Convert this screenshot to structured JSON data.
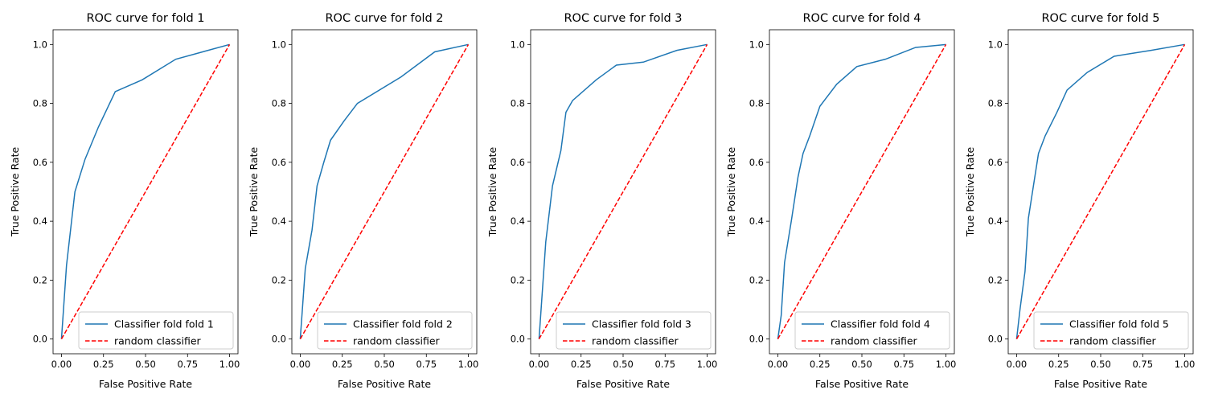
{
  "chart_data": [
    {
      "type": "line",
      "title": "ROC curve for fold 1",
      "xlabel": "False Positive Rate",
      "ylabel": "True Positive Rate",
      "xlim": [
        -0.05,
        1.05
      ],
      "ylim": [
        -0.05,
        1.05
      ],
      "xticks": [
        "0.00",
        "0.25",
        "0.50",
        "0.75",
        "1.00"
      ],
      "yticks": [
        "0.0",
        "0.2",
        "0.4",
        "0.6",
        "0.8",
        "1.0"
      ],
      "grid": false,
      "legend_position": "lower-right",
      "series": [
        {
          "name": "Classifier fold fold 1",
          "color": "#1f77b4",
          "style": "solid",
          "x": [
            0,
            0.03,
            0.08,
            0.14,
            0.22,
            0.32,
            0.48,
            0.68,
            1.0
          ],
          "y": [
            0,
            0.25,
            0.5,
            0.61,
            0.72,
            0.84,
            0.88,
            0.95,
            1.0
          ]
        },
        {
          "name": "random classifier",
          "color": "#ff0000",
          "style": "dashed",
          "x": [
            0,
            1
          ],
          "y": [
            0,
            1
          ]
        }
      ]
    },
    {
      "type": "line",
      "title": "ROC curve for fold 2",
      "xlabel": "False Positive Rate",
      "ylabel": "True Positive Rate",
      "xlim": [
        -0.05,
        1.05
      ],
      "ylim": [
        -0.05,
        1.05
      ],
      "xticks": [
        "0.00",
        "0.25",
        "0.50",
        "0.75",
        "1.00"
      ],
      "yticks": [
        "0.0",
        "0.2",
        "0.4",
        "0.6",
        "0.8",
        "1.0"
      ],
      "grid": false,
      "legend_position": "lower-right",
      "series": [
        {
          "name": "Classifier fold fold 2",
          "color": "#1f77b4",
          "style": "solid",
          "x": [
            0,
            0.03,
            0.07,
            0.1,
            0.14,
            0.18,
            0.26,
            0.34,
            0.6,
            0.8,
            1.0
          ],
          "y": [
            0,
            0.24,
            0.37,
            0.52,
            0.6,
            0.675,
            0.74,
            0.8,
            0.89,
            0.975,
            1.0
          ]
        },
        {
          "name": "random classifier",
          "color": "#ff0000",
          "style": "dashed",
          "x": [
            0,
            1
          ],
          "y": [
            0,
            1
          ]
        }
      ]
    },
    {
      "type": "line",
      "title": "ROC curve for fold 3",
      "xlabel": "False Positive Rate",
      "ylabel": "True Positive Rate",
      "xlim": [
        -0.05,
        1.05
      ],
      "ylim": [
        -0.05,
        1.05
      ],
      "xticks": [
        "0.00",
        "0.25",
        "0.50",
        "0.75",
        "1.00"
      ],
      "yticks": [
        "0.0",
        "0.2",
        "0.4",
        "0.6",
        "0.8",
        "1.0"
      ],
      "grid": false,
      "legend_position": "lower-right",
      "series": [
        {
          "name": "Classifier fold fold 3",
          "color": "#1f77b4",
          "style": "solid",
          "x": [
            0,
            0.04,
            0.08,
            0.13,
            0.16,
            0.2,
            0.34,
            0.46,
            0.62,
            0.82,
            1.0
          ],
          "y": [
            0,
            0.33,
            0.52,
            0.64,
            0.77,
            0.81,
            0.88,
            0.93,
            0.94,
            0.98,
            1.0
          ]
        },
        {
          "name": "random classifier",
          "color": "#ff0000",
          "style": "dashed",
          "x": [
            0,
            1
          ],
          "y": [
            0,
            1
          ]
        }
      ]
    },
    {
      "type": "line",
      "title": "ROC curve for fold 4",
      "xlabel": "False Positive Rate",
      "ylabel": "True Positive Rate",
      "xlim": [
        -0.05,
        1.05
      ],
      "ylim": [
        -0.05,
        1.05
      ],
      "xticks": [
        "0.00",
        "0.25",
        "0.50",
        "0.75",
        "1.00"
      ],
      "yticks": [
        "0.0",
        "0.2",
        "0.4",
        "0.6",
        "0.8",
        "1.0"
      ],
      "grid": false,
      "legend_position": "lower-right",
      "series": [
        {
          "name": "Classifier fold fold 4",
          "color": "#1f77b4",
          "style": "solid",
          "x": [
            0,
            0.02,
            0.04,
            0.08,
            0.12,
            0.15,
            0.19,
            0.25,
            0.35,
            0.47,
            0.64,
            0.82,
            1.0
          ],
          "y": [
            0,
            0.08,
            0.26,
            0.4,
            0.55,
            0.63,
            0.69,
            0.79,
            0.865,
            0.925,
            0.95,
            0.99,
            1.0
          ]
        },
        {
          "name": "random classifier",
          "color": "#ff0000",
          "style": "dashed",
          "x": [
            0,
            1
          ],
          "y": [
            0,
            1
          ]
        }
      ]
    },
    {
      "type": "line",
      "title": "ROC curve for fold 5",
      "xlabel": "False Positive Rate",
      "ylabel": "True Positive Rate",
      "xlim": [
        -0.05,
        1.05
      ],
      "ylim": [
        -0.05,
        1.05
      ],
      "xticks": [
        "0.00",
        "0.25",
        "0.50",
        "0.75",
        "1.00"
      ],
      "yticks": [
        "0.0",
        "0.2",
        "0.4",
        "0.6",
        "0.8",
        "1.0"
      ],
      "grid": false,
      "legend_position": "lower-right",
      "series": [
        {
          "name": "Classifier fold fold 5",
          "color": "#1f77b4",
          "style": "solid",
          "x": [
            0,
            0.02,
            0.05,
            0.07,
            0.1,
            0.13,
            0.17,
            0.24,
            0.3,
            0.42,
            0.58,
            0.8,
            1.0
          ],
          "y": [
            0,
            0.1,
            0.23,
            0.41,
            0.52,
            0.63,
            0.69,
            0.77,
            0.845,
            0.905,
            0.96,
            0.98,
            1.0
          ]
        },
        {
          "name": "random classifier",
          "color": "#ff0000",
          "style": "dashed",
          "x": [
            0,
            1
          ],
          "y": [
            0,
            1
          ]
        }
      ]
    }
  ]
}
